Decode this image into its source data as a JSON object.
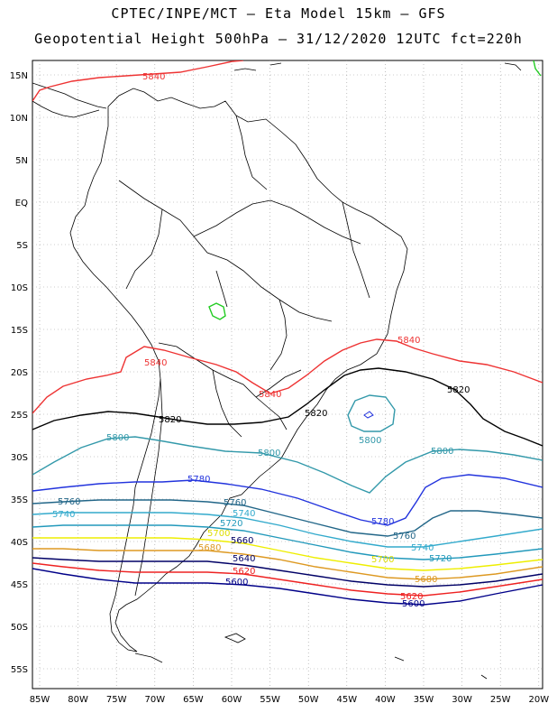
{
  "header": {
    "line1": "CPTEC/INPE/MCT –  Eta Model 15km – GFS",
    "line2": "Geopotential Height 500hPa – 31/12/2020 12UTC fct=220h"
  },
  "axes": {
    "lat_labels": [
      "15N",
      "10N",
      "5N",
      "EQ",
      "5S",
      "10S",
      "15S",
      "20S",
      "25S",
      "30S",
      "35S",
      "40S",
      "45S",
      "50S",
      "55S"
    ],
    "lon_labels": [
      "85W",
      "80W",
      "75W",
      "70W",
      "65W",
      "60W",
      "55W",
      "50W",
      "45W",
      "40W",
      "35W",
      "30W",
      "25W",
      "20W"
    ]
  },
  "contours": [
    {
      "name": "5840",
      "color": "#ee3333"
    },
    {
      "name": "5820",
      "color": "#000000"
    },
    {
      "name": "5800",
      "color": "#3399aa"
    },
    {
      "name": "5780",
      "color": "#2233dd"
    },
    {
      "name": "5760",
      "color": "#226688"
    },
    {
      "name": "5740",
      "color": "#33aacc"
    },
    {
      "name": "5720",
      "color": "#2299bb"
    },
    {
      "name": "5700",
      "color": "#eeee00"
    },
    {
      "name": "5680",
      "color": "#dd9922"
    },
    {
      "name": "5660",
      "color": "#000066"
    },
    {
      "name": "5620",
      "color": "#ee2222"
    },
    {
      "name": "5600",
      "color": "#000088"
    }
  ],
  "labels": {
    "l5840a": "5840",
    "l5840b": "5840",
    "l5840c": "5840",
    "l5840d": "5840",
    "l5820a": "5820",
    "l5820b": "5820",
    "l5820c": "5820",
    "l5800a": "5800",
    "l5800b": "5800",
    "l5800c": "5800",
    "l5800d": "5800",
    "l5780a": "5780",
    "l5780b": "5780",
    "l5760a": "5760",
    "l5760b": "5760",
    "l5760c": "5760",
    "l5740a": "5740",
    "l5740b": "5740",
    "l5740c": "5740",
    "l5720a": "5720",
    "l5720b": "5720",
    "l5700a": "5700",
    "l5700b": "5700",
    "l5680a": "5680",
    "l5680b": "5680",
    "l5660a": "5660",
    "l5660b": "5640",
    "l5620a": "5620",
    "l5620b": "5620",
    "l5600a": "5600",
    "l5600b": "5600"
  }
}
